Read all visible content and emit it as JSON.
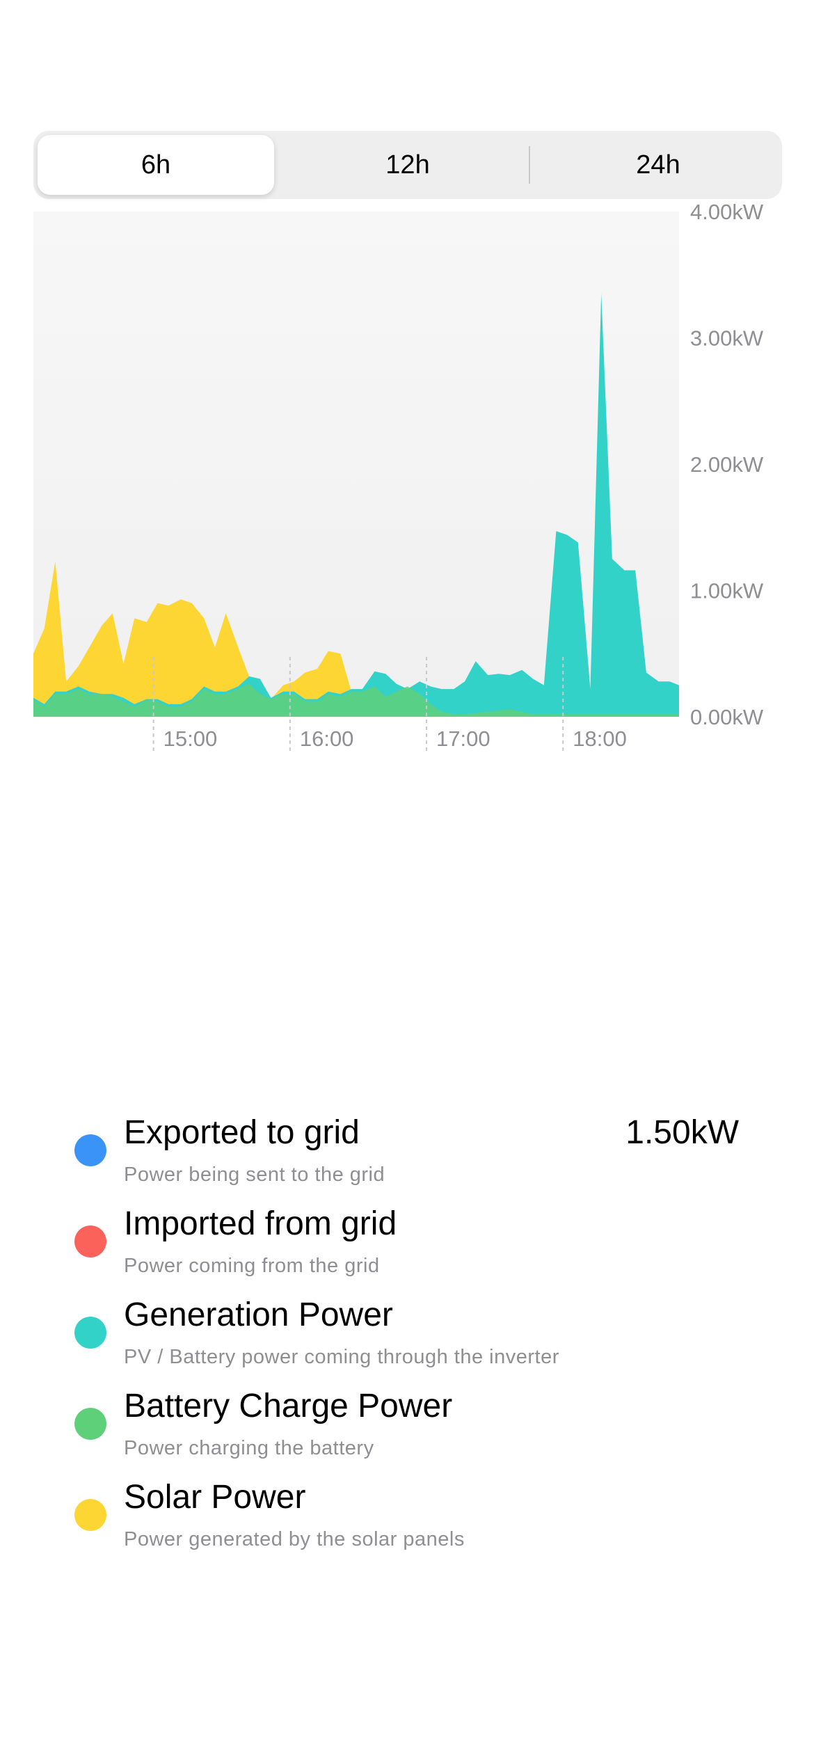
{
  "range_selector": {
    "options": [
      "6h",
      "12h",
      "24h"
    ],
    "selected": "6h"
  },
  "colors": {
    "exported": "#3a94f7",
    "imported": "#fb625a",
    "generation": "#33d2c8",
    "battery": "#5fd07a",
    "solar": "#fdd634",
    "plot_bg": "#f4f4f4",
    "axis_text": "#8e8e93"
  },
  "chart_data": {
    "type": "area",
    "title": "",
    "xlabel": "",
    "ylabel": "",
    "x_unit": "hours",
    "xlim": [
      14.12,
      18.85
    ],
    "ylim": [
      0,
      4
    ],
    "y_ticks": [
      0,
      1,
      2,
      3,
      4
    ],
    "y_tick_labels": [
      "0.00kW",
      "1.00kW",
      "2.00kW",
      "3.00kW",
      "4.00kW"
    ],
    "x_ticks": [
      15,
      16,
      17,
      18
    ],
    "x_tick_labels": [
      "15:00",
      "16:00",
      "17:00",
      "18:00"
    ],
    "grid": false,
    "series": [
      {
        "name": "Solar Power",
        "color_key": "solar",
        "x": [
          14.12,
          14.2,
          14.28,
          14.36,
          14.45,
          14.53,
          14.62,
          14.7,
          14.78,
          14.86,
          14.95,
          15.03,
          15.11,
          15.2,
          15.28,
          15.37,
          15.45,
          15.53,
          15.62,
          15.7,
          15.78,
          15.86,
          15.95,
          16.03,
          16.11,
          16.2,
          16.28,
          16.37,
          16.45,
          16.53,
          16.62,
          16.7,
          16.78,
          16.86,
          16.95,
          17.03,
          17.11,
          17.2,
          18.85
        ],
        "y": [
          0.5,
          0.7,
          1.23,
          0.28,
          0.4,
          0.55,
          0.72,
          0.82,
          0.42,
          0.78,
          0.75,
          0.9,
          0.88,
          0.93,
          0.9,
          0.78,
          0.55,
          0.82,
          0.55,
          0.32,
          0.22,
          0.14,
          0.25,
          0.28,
          0.35,
          0.38,
          0.52,
          0.5,
          0.2,
          0.12,
          0.1,
          0.14,
          0.12,
          0.1,
          0.08,
          0.04,
          0.02,
          0.0,
          0.0
        ]
      },
      {
        "name": "Generation Power",
        "color_key": "generation",
        "x": [
          14.12,
          14.2,
          14.28,
          14.36,
          14.45,
          14.53,
          14.62,
          14.7,
          14.78,
          14.86,
          14.95,
          15.03,
          15.11,
          15.2,
          15.28,
          15.37,
          15.45,
          15.53,
          15.62,
          15.7,
          15.78,
          15.86,
          15.95,
          16.03,
          16.11,
          16.2,
          16.28,
          16.37,
          16.45,
          16.53,
          16.62,
          16.7,
          16.78,
          16.86,
          16.95,
          17.03,
          17.11,
          17.2,
          17.28,
          17.36,
          17.45,
          17.53,
          17.61,
          17.7,
          17.78,
          17.86,
          17.95,
          18.03,
          18.11,
          18.2,
          18.28,
          18.36,
          18.45,
          18.53,
          18.61,
          18.7,
          18.78,
          18.85
        ],
        "y": [
          0.15,
          0.1,
          0.2,
          0.2,
          0.24,
          0.2,
          0.18,
          0.18,
          0.15,
          0.1,
          0.14,
          0.14,
          0.1,
          0.1,
          0.14,
          0.24,
          0.2,
          0.2,
          0.24,
          0.32,
          0.3,
          0.15,
          0.2,
          0.2,
          0.14,
          0.14,
          0.2,
          0.18,
          0.22,
          0.22,
          0.36,
          0.34,
          0.26,
          0.22,
          0.28,
          0.24,
          0.22,
          0.22,
          0.28,
          0.44,
          0.33,
          0.34,
          0.33,
          0.37,
          0.3,
          0.25,
          1.47,
          1.44,
          1.38,
          0.22,
          3.35,
          1.25,
          1.16,
          1.16,
          0.35,
          0.28,
          0.28,
          0.25
        ]
      },
      {
        "name": "Battery Charge Power",
        "color_key": "battery",
        "x": [
          14.12,
          14.2,
          14.28,
          14.36,
          14.45,
          14.53,
          14.62,
          14.7,
          14.78,
          14.86,
          14.95,
          15.03,
          15.11,
          15.2,
          15.28,
          15.37,
          15.45,
          15.53,
          15.62,
          15.7,
          15.78,
          15.86,
          15.95,
          16.03,
          16.11,
          16.2,
          16.28,
          16.37,
          16.45,
          16.53,
          16.62,
          16.7,
          16.78,
          16.86,
          16.95,
          17.03,
          17.11,
          17.2,
          17.28,
          17.45,
          17.61,
          17.78,
          17.95,
          18.11,
          18.28,
          18.45,
          18.61,
          18.85
        ],
        "y": [
          0.14,
          0.08,
          0.18,
          0.18,
          0.22,
          0.18,
          0.18,
          0.16,
          0.12,
          0.08,
          0.13,
          0.12,
          0.08,
          0.08,
          0.12,
          0.22,
          0.18,
          0.18,
          0.22,
          0.26,
          0.18,
          0.14,
          0.18,
          0.18,
          0.12,
          0.12,
          0.18,
          0.16,
          0.2,
          0.2,
          0.24,
          0.16,
          0.2,
          0.24,
          0.18,
          0.1,
          0.04,
          0.02,
          0.02,
          0.04,
          0.06,
          0.02,
          0.02,
          0.02,
          0.02,
          0.02,
          0.02,
          0.02
        ]
      }
    ]
  },
  "legend": [
    {
      "key": "exported",
      "title": "Exported to grid",
      "subtitle": "Power being sent to the grid",
      "value": "1.50kW"
    },
    {
      "key": "imported",
      "title": "Imported from grid",
      "subtitle": "Power coming from the grid",
      "value": ""
    },
    {
      "key": "generation",
      "title": "Generation Power",
      "subtitle": "PV / Battery power coming through the inverter",
      "value": ""
    },
    {
      "key": "battery",
      "title": "Battery Charge Power",
      "subtitle": "Power charging the battery",
      "value": ""
    },
    {
      "key": "solar",
      "title": "Solar Power",
      "subtitle": "Power generated by the solar panels",
      "value": ""
    }
  ]
}
